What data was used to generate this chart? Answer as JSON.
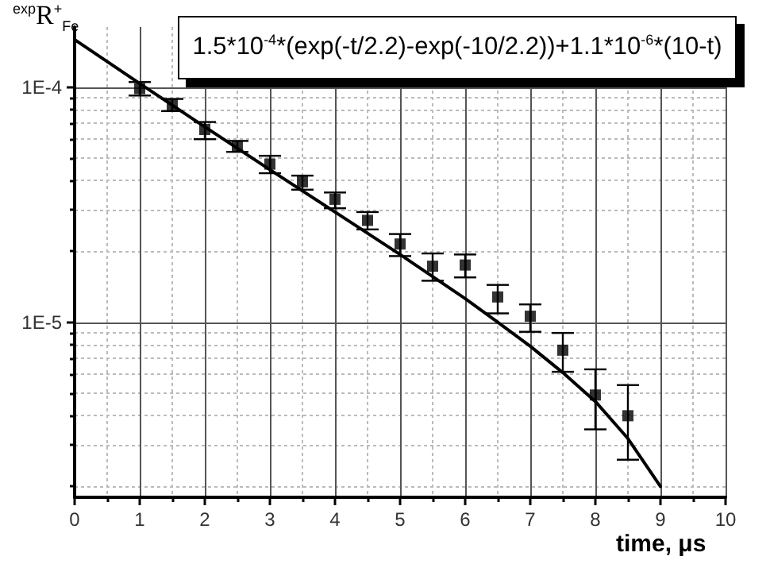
{
  "chart_data": {
    "type": "scatter",
    "xlabel": "time, μs",
    "ylabel": "$^{exp}$R$^{+}$$_{Fe}$",
    "annotations": [
      "1.5*10$^{-4}$*(exp(-t/2.2)-exp(-10/2.2))+1.1*10$^{-6}$*(10-t)"
    ],
    "log": "y",
    "grid": true,
    "marker": "square",
    "xlim": [
      0,
      10
    ],
    "xticks": [
      0,
      {
        "value": 0.5,
        "label": null
      },
      1,
      {
        "value": 1.5,
        "label": null
      },
      2,
      {
        "value": 2.5,
        "label": null
      },
      3,
      {
        "value": 3.5,
        "label": null
      },
      4,
      {
        "value": 4.5,
        "label": null
      },
      5,
      {
        "value": 5.5,
        "label": null
      },
      6,
      {
        "value": 6.5,
        "label": null
      },
      7,
      {
        "value": 7.5,
        "label": null
      },
      8,
      {
        "value": 8.5,
        "label": null
      },
      9,
      {
        "value": 9.5,
        "label": null
      },
      10
    ],
    "ylim": [
      1.8e-06,
      0.00018
    ],
    "yticks": [
      {
        "value": 2e-06,
        "label": null
      },
      {
        "value": 3e-06,
        "label": null
      },
      {
        "value": 4e-06,
        "label": null
      },
      {
        "value": 5e-06,
        "label": null
      },
      {
        "value": 6e-06,
        "label": null
      },
      {
        "value": 7e-06,
        "label": null
      },
      {
        "value": 8e-06,
        "label": null
      },
      {
        "value": 9e-06,
        "label": null
      },
      {
        "value": 1e-05,
        "label": "1E-5"
      },
      {
        "value": 2e-05,
        "label": null
      },
      {
        "value": 3e-05,
        "label": null
      },
      {
        "value": 4e-05,
        "label": null
      },
      {
        "value": 5e-05,
        "label": null
      },
      {
        "value": 6e-05,
        "label": null
      },
      {
        "value": 7e-05,
        "label": null
      },
      {
        "value": 8e-05,
        "label": null
      },
      {
        "value": 9e-05,
        "label": null
      },
      {
        "value": 0.0001,
        "label": "1E-4"
      }
    ],
    "series": [
      {
        "color": "#000000",
        "x": [
          1,
          1.5,
          2,
          2.5,
          3,
          3.5,
          4,
          4.5,
          5,
          5.5,
          6,
          6.5,
          7,
          7.5,
          8,
          8.5
        ],
        "values": [
          9.85e-05,
          8.4e-05,
          6.6e-05,
          5.6e-05,
          4.7e-05,
          3.95e-05,
          3.33e-05,
          2.71e-05,
          2.15e-05,
          1.73e-05,
          1.75e-05,
          1.28e-05,
          1.06e-05,
          7.6e-06,
          4.9e-06,
          4e-06
        ],
        "errors": [
          [
            9.2e-05,
            0.000105
          ],
          [
            7.9e-05,
            8.9e-05
          ],
          [
            6e-05,
            7.1e-05
          ],
          [
            5.3e-05,
            5.9e-05
          ],
          [
            4.3e-05,
            5.1e-05
          ],
          [
            3.66e-05,
            4.2e-05
          ],
          [
            3.05e-05,
            3.56e-05
          ],
          [
            2.48e-05,
            2.94e-05
          ],
          [
            1.91e-05,
            2.37e-05
          ],
          [
            1.5e-05,
            1.96e-05
          ],
          [
            1.55e-05,
            1.94e-05
          ],
          [
            1.09e-05,
            1.44e-05
          ],
          [
            9.1e-06,
            1.19e-05
          ],
          [
            6.15e-06,
            9e-06
          ],
          [
            3.5e-06,
            6.3e-06
          ],
          [
            2.6e-06,
            5.4e-06
          ]
        ]
      },
      {
        "type": "line",
        "color": "#000000",
        "marker": "none",
        "line_style": "solid",
        "x": [
          0,
          1,
          2,
          3,
          4,
          5,
          6,
          6.5,
          7,
          7.5,
          8,
          8.5,
          9
        ],
        "values": [
          0.000159,
          0.0001035,
          6.77e-05,
          4.45e-05,
          2.94e-05,
          1.94e-05,
          1.26e-05,
          1e-05,
          7.9e-06,
          6.1e-06,
          4.6e-06,
          3.2e-06,
          2e-06
        ]
      }
    ]
  }
}
